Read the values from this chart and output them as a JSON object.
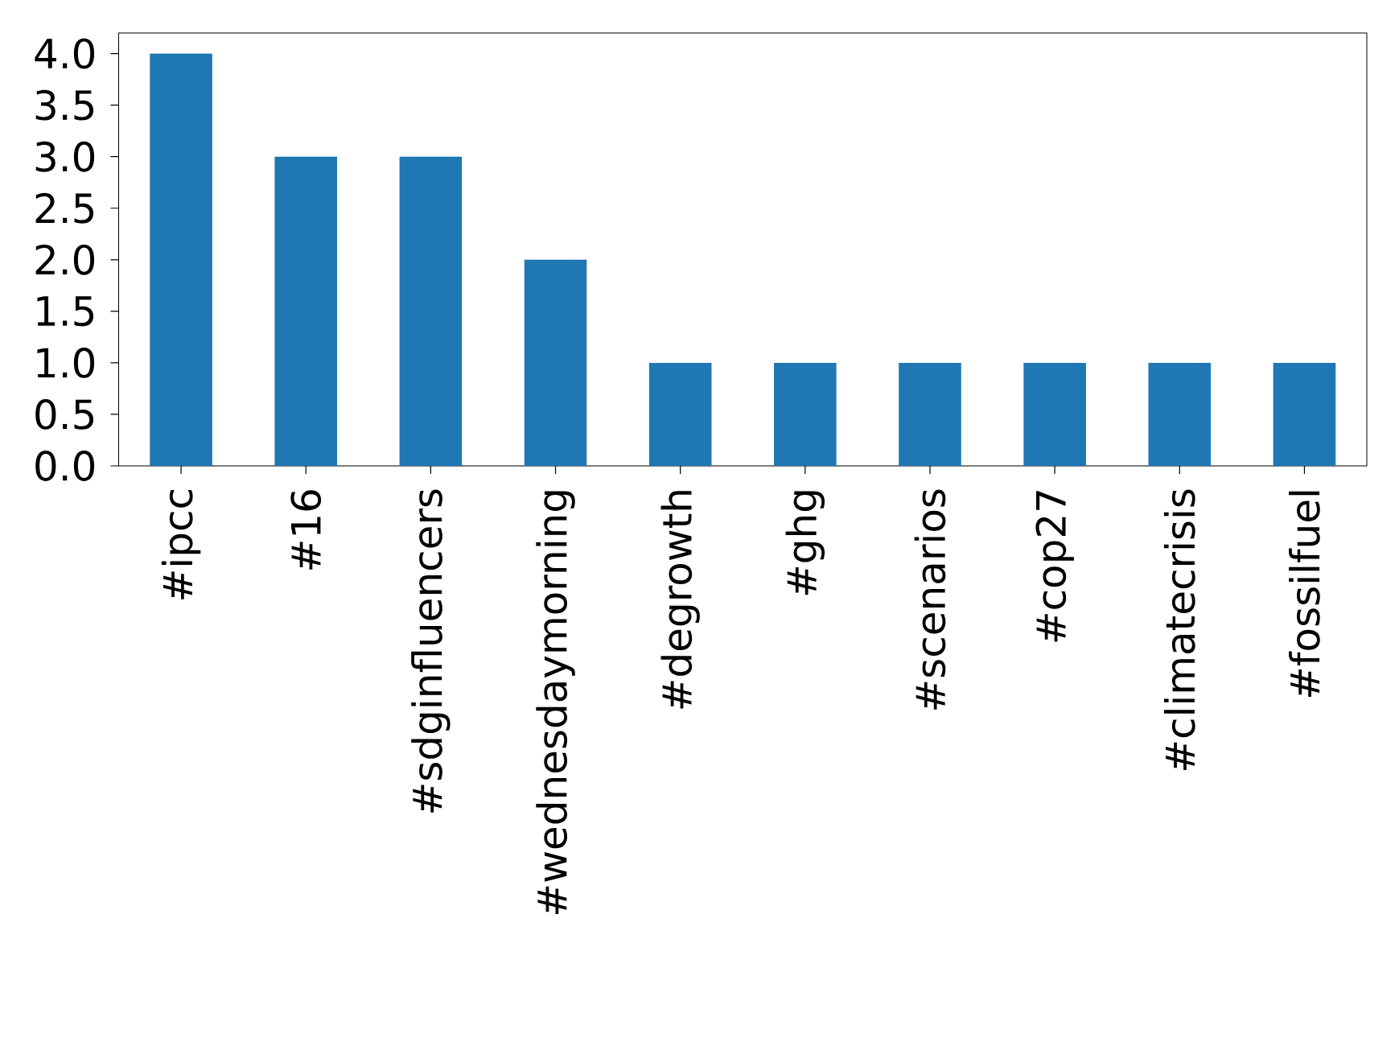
{
  "chart_data": {
    "type": "bar",
    "categories": [
      "#ipcc",
      "#16",
      "#sdginfluencers",
      "#wednesdaymorning",
      "#degrowth",
      "#ghg",
      "#scenarios",
      "#cop27",
      "#climatecrisis",
      "#fossilfuel"
    ],
    "values": [
      4,
      3,
      3,
      2,
      1,
      1,
      1,
      1,
      1,
      1
    ],
    "color": "#1f77b4",
    "ylim": [
      0,
      4.2
    ],
    "yticks": [
      {
        "value": 0,
        "label": "0.0"
      },
      {
        "value": 0.5,
        "label": "0.5"
      },
      {
        "value": 1,
        "label": "1.0"
      },
      {
        "value": 1.5,
        "label": "1.5"
      },
      {
        "value": 2,
        "label": "2.0"
      },
      {
        "value": 2.5,
        "label": "2.5"
      },
      {
        "value": 3,
        "label": "3.0"
      },
      {
        "value": 3.5,
        "label": "3.5"
      },
      {
        "value": 4,
        "label": "4.0"
      }
    ]
  }
}
